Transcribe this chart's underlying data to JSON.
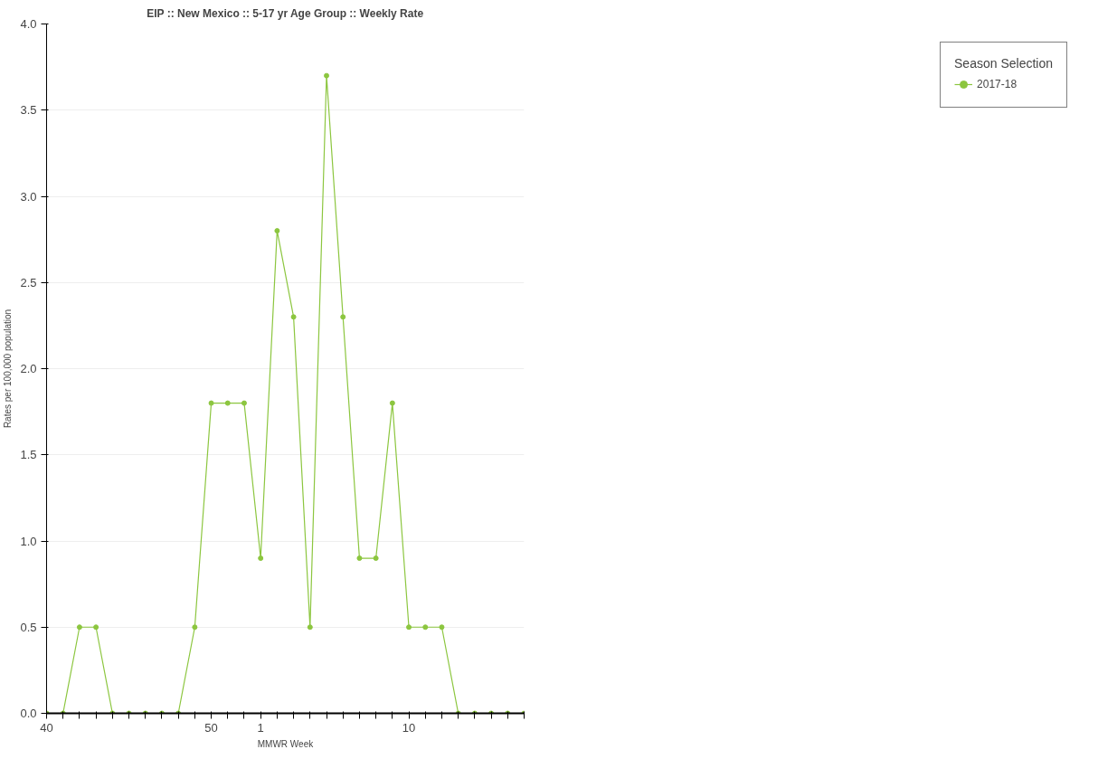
{
  "chart_data": {
    "type": "line",
    "title": "EIP :: New Mexico :: 5-17 yr Age Group :: Weekly Rate",
    "xlabel": "MMWR Week",
    "ylabel": "Rates per 100,000 population",
    "legend_title": "Season Selection",
    "categories": [
      "40",
      null,
      null,
      null,
      null,
      null,
      null,
      null,
      null,
      null,
      "50",
      null,
      null,
      "1",
      null,
      null,
      null,
      null,
      null,
      null,
      null,
      null,
      "10",
      null,
      null,
      null,
      null,
      null,
      null,
      null
    ],
    "series": [
      {
        "name": "2017-18",
        "color": "#8cc63f",
        "values": [
          0,
          0,
          0.5,
          0.5,
          0,
          0,
          0,
          0,
          0,
          0.5,
          1.8,
          1.8,
          1.8,
          0.9,
          2.8,
          2.3,
          0.5,
          3.7,
          2.3,
          0.9,
          0.9,
          1.8,
          0.5,
          0.5,
          0.5,
          0,
          0,
          0,
          0,
          0
        ]
      }
    ],
    "ylim": [
      0,
      4
    ],
    "yticks": [
      {
        "value": 0,
        "label": "0.0"
      },
      {
        "value": 0.5,
        "label": "0.5"
      },
      {
        "value": 1,
        "label": "1.0"
      },
      {
        "value": 1.5,
        "label": "1.5"
      },
      {
        "value": 2,
        "label": "2.0"
      },
      {
        "value": 2.5,
        "label": "2.5"
      },
      {
        "value": 3,
        "label": "3.0"
      },
      {
        "value": 3.5,
        "label": "3.5"
      },
      {
        "value": 4,
        "label": "4.0"
      }
    ],
    "grid": "y",
    "legend": "top right",
    "marker": "circle",
    "line_style": "solid"
  }
}
